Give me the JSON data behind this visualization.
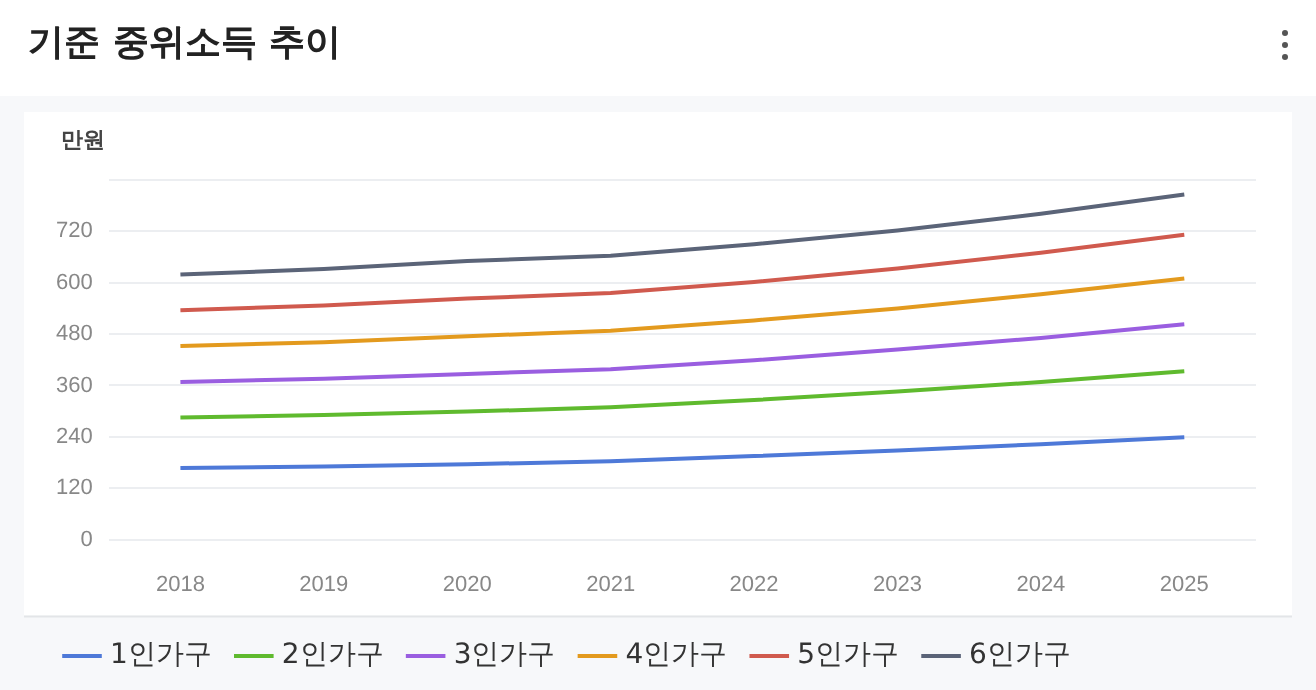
{
  "chart_data": {
    "type": "line",
    "title": "기준 중위소득 추이",
    "ylabel": "만원",
    "categories": [
      "2018",
      "2019",
      "2020",
      "2021",
      "2022",
      "2023",
      "2024",
      "2025"
    ],
    "series": [
      {
        "name": "1인가구",
        "color": "#4e79d8",
        "values": [
          167,
          171,
          176,
          183,
          195,
          208,
          223,
          239
        ]
      },
      {
        "name": "2인가구",
        "color": "#5fba2e",
        "values": [
          285,
          291,
          299,
          309,
          326,
          346,
          368,
          393
        ]
      },
      {
        "name": "3인가구",
        "color": "#9a5ee0",
        "values": [
          368,
          376,
          387,
          398,
          419,
          444,
          471,
          503
        ]
      },
      {
        "name": "4인가구",
        "color": "#e39a1e",
        "values": [
          452,
          461,
          475,
          488,
          512,
          540,
          573,
          610
        ]
      },
      {
        "name": "5인가구",
        "color": "#d05a4e",
        "values": [
          536,
          547,
          563,
          576,
          602,
          633,
          670,
          712
        ]
      },
      {
        "name": "6인가구",
        "color": "#5b6478",
        "values": [
          619,
          632,
          651,
          663,
          690,
          722,
          761,
          806
        ]
      }
    ],
    "ylim": [
      0,
      840
    ],
    "yticks": [
      0,
      120,
      240,
      360,
      480,
      600,
      720,
      {
        "value": 840,
        "label": null
      }
    ],
    "grid": "y",
    "legend": "bottom left",
    "marker": "none",
    "line_style": "solid"
  }
}
